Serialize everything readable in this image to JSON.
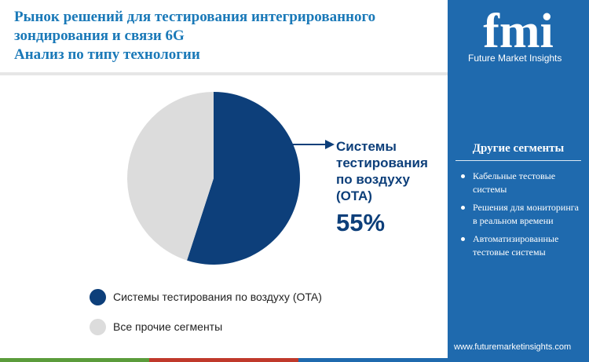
{
  "header": {
    "title_lines": [
      "Рынок решений для тестирования интегрированного",
      "зондирования и связи 6G",
      "Анализ по типу технологии"
    ]
  },
  "chart_data": {
    "type": "pie",
    "title": "Рынок решений для тестирования интегрированного зондирования и связи 6G — Анализ по типу технологии",
    "slices": [
      {
        "label": "Системы тестирования по воздуху (OTA)",
        "value": 55,
        "color": "#0d3f7a"
      },
      {
        "label": "Все прочие сегменты",
        "value": 45,
        "color": "#dcdcdc"
      }
    ],
    "legend_position": "bottom-left",
    "callout": {
      "label_lines": [
        "Системы",
        "тестирования",
        "по воздуху",
        "(OTA)"
      ],
      "value": "55%"
    }
  },
  "brand": {
    "logo_text": "fmi",
    "tagline": "Future Market Insights",
    "url": "www.futuremarketinsights.com"
  },
  "sidebar": {
    "title": "Другие сегменты",
    "items": [
      "Кабельные тестовые системы",
      "Решения для мониторинга в реальном времени",
      "Автоматизированные тестовые системы"
    ]
  },
  "colors": {
    "accent_blue": "#1a79b8",
    "dark_blue": "#0d3f7a",
    "sidebar_blue": "#1f6aae",
    "bar_green": "#5b9c3b",
    "bar_red": "#c0392b",
    "bar_blue": "#1f6aae"
  }
}
